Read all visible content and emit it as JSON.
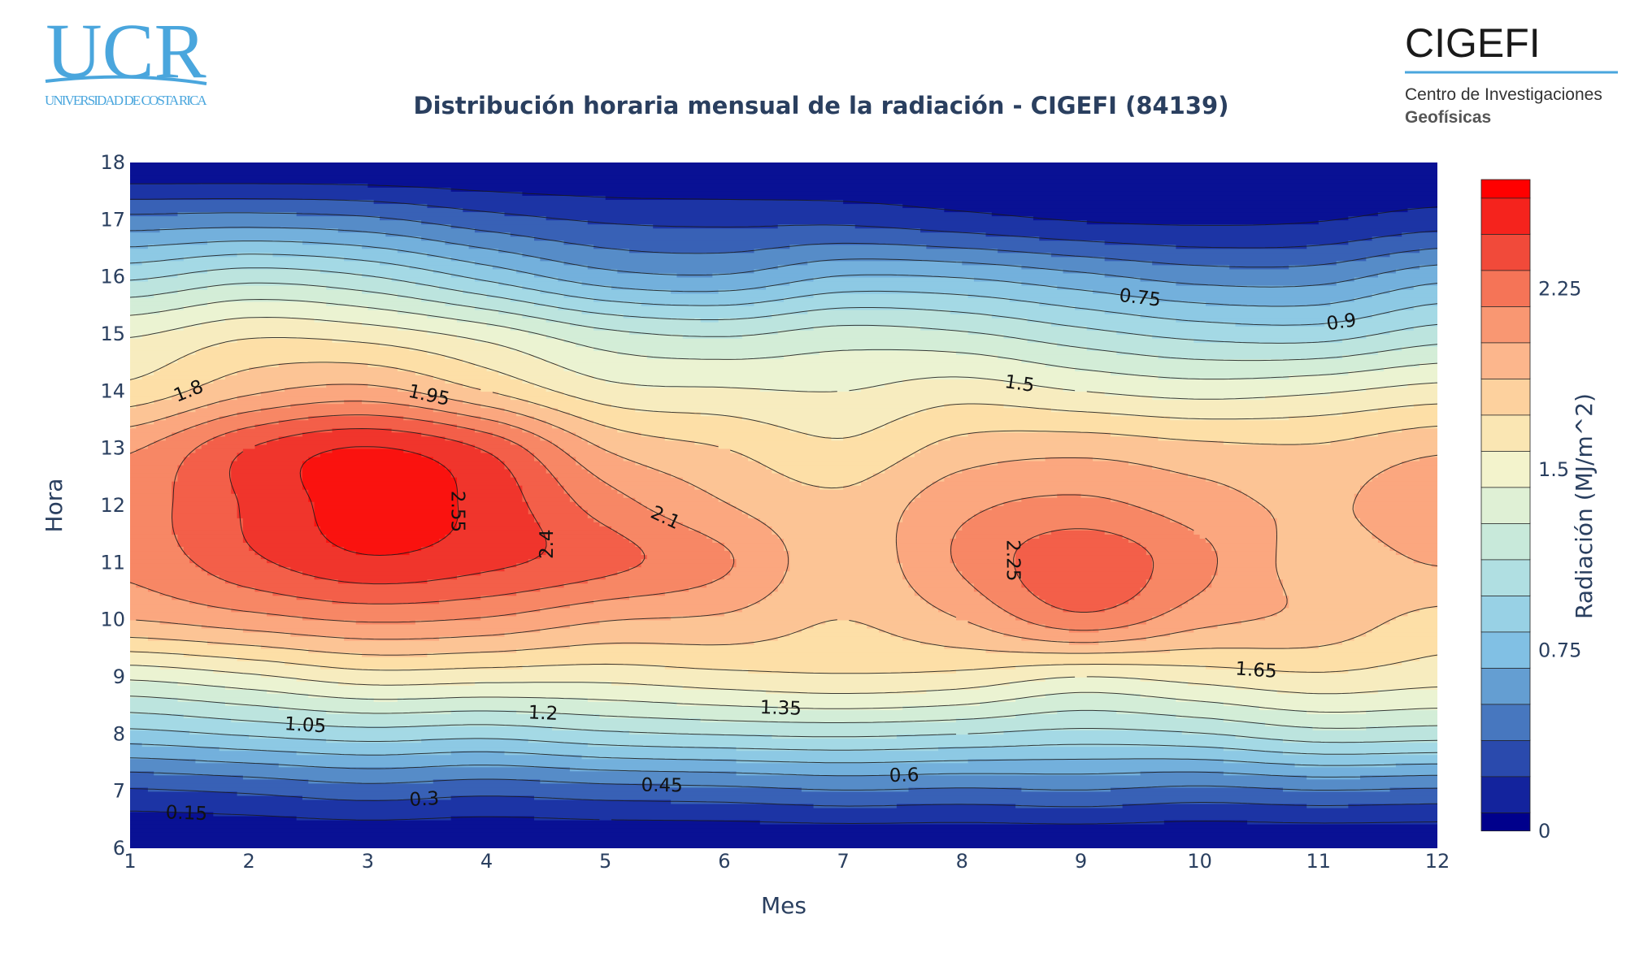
{
  "logos": {
    "ucr_main": "UCR",
    "ucr_sub": "UNIVERSIDAD DE COSTA RICA",
    "cigefi_main": "CIGEFI",
    "cigefi_sub1": "Centro de Investigaciones",
    "cigefi_sub2": "Geofísicas"
  },
  "chart_data": {
    "type": "contour",
    "title": "Distribución horaria mensual de la radiación - CIGEFI (84139)",
    "xlabel": "Mes",
    "ylabel": "Hora",
    "colorbar_title": "Radiación (MJ/m^2)",
    "xlim": [
      1,
      12
    ],
    "ylim": [
      6,
      18
    ],
    "x_ticks": [
      1,
      2,
      3,
      4,
      5,
      6,
      7,
      8,
      9,
      10,
      11,
      12
    ],
    "y_ticks": [
      6,
      7,
      8,
      9,
      10,
      11,
      12,
      13,
      14,
      15,
      16,
      17,
      18
    ],
    "colorbar_ticks": [
      "0",
      "0.75",
      "1.5",
      "2.25"
    ],
    "contour_start": 0,
    "contour_step": 0.15,
    "contour_end": 2.7,
    "colorscale": [
      "#00008c",
      "#1f39a7",
      "#4f84c4",
      "#7fbfe4",
      "#a5dae5",
      "#ccebd9",
      "#f2f5d0",
      "#fde0a8",
      "#fcb48a",
      "#f6805f",
      "#ef3a30",
      "#ff0000"
    ],
    "contour_labels": [
      "0.15",
      "0.3",
      "0.45",
      "0.6",
      "0.75",
      "0.9",
      "1.05",
      "1.2",
      "1.35",
      "1.5",
      "1.65",
      "1.8",
      "1.95",
      "2.1",
      "2.25",
      "2.4",
      "2.55"
    ],
    "series": [
      {
        "hour": 6,
        "values": [
          0.0,
          0.0,
          0.0,
          0.0,
          0.0,
          0.0,
          0.0,
          0.0,
          0.0,
          0.0,
          0.0,
          0.0
        ]
      },
      {
        "hour": 7,
        "values": [
          0.28,
          0.32,
          0.38,
          0.34,
          0.38,
          0.4,
          0.44,
          0.42,
          0.44,
          0.4,
          0.44,
          0.42
        ]
      },
      {
        "hour": 8,
        "values": [
          0.85,
          0.92,
          0.98,
          0.95,
          1.02,
          1.06,
          1.08,
          1.05,
          1.0,
          1.04,
          1.14,
          1.12
        ]
      },
      {
        "hour": 9,
        "values": [
          1.38,
          1.47,
          1.58,
          1.56,
          1.55,
          1.6,
          1.63,
          1.6,
          1.5,
          1.56,
          1.62,
          1.56
        ]
      },
      {
        "hour": 10,
        "values": [
          1.95,
          2.04,
          2.12,
          2.08,
          1.96,
          1.92,
          1.8,
          1.95,
          2.2,
          2.0,
          1.9,
          1.75
        ]
      },
      {
        "hour": 11,
        "values": [
          2.14,
          2.36,
          2.52,
          2.44,
          2.3,
          2.12,
          1.86,
          2.12,
          2.36,
          2.14,
          1.88,
          1.96
        ]
      },
      {
        "hour": 12,
        "values": [
          2.18,
          2.42,
          2.62,
          2.5,
          2.18,
          1.96,
          1.84,
          2.06,
          2.14,
          2.02,
          1.92,
          2.07
        ]
      },
      {
        "hour": 13,
        "values": [
          2.08,
          2.4,
          2.56,
          2.38,
          1.94,
          1.8,
          1.68,
          1.86,
          1.9,
          1.84,
          1.82,
          1.92
        ]
      },
      {
        "hour": 14,
        "values": [
          1.7,
          1.92,
          2.0,
          1.8,
          1.56,
          1.52,
          1.5,
          1.58,
          1.5,
          1.44,
          1.48,
          1.56
        ]
      },
      {
        "hour": 15,
        "values": [
          1.48,
          1.62,
          1.58,
          1.44,
          1.24,
          1.18,
          1.26,
          1.22,
          1.1,
          1.0,
          0.98,
          1.12
        ]
      },
      {
        "hour": 16,
        "values": [
          1.02,
          1.14,
          1.06,
          0.86,
          0.66,
          0.62,
          0.76,
          0.74,
          0.64,
          0.54,
          0.54,
          0.7
        ]
      },
      {
        "hour": 17,
        "values": [
          0.5,
          0.52,
          0.48,
          0.36,
          0.28,
          0.26,
          0.26,
          0.2,
          0.14,
          0.12,
          0.14,
          0.22
        ]
      },
      {
        "hour": 18,
        "values": [
          0.0,
          0.0,
          0.0,
          0.0,
          0.0,
          0.0,
          0.0,
          0.0,
          0.0,
          0.0,
          0.0,
          0.0
        ]
      }
    ]
  }
}
